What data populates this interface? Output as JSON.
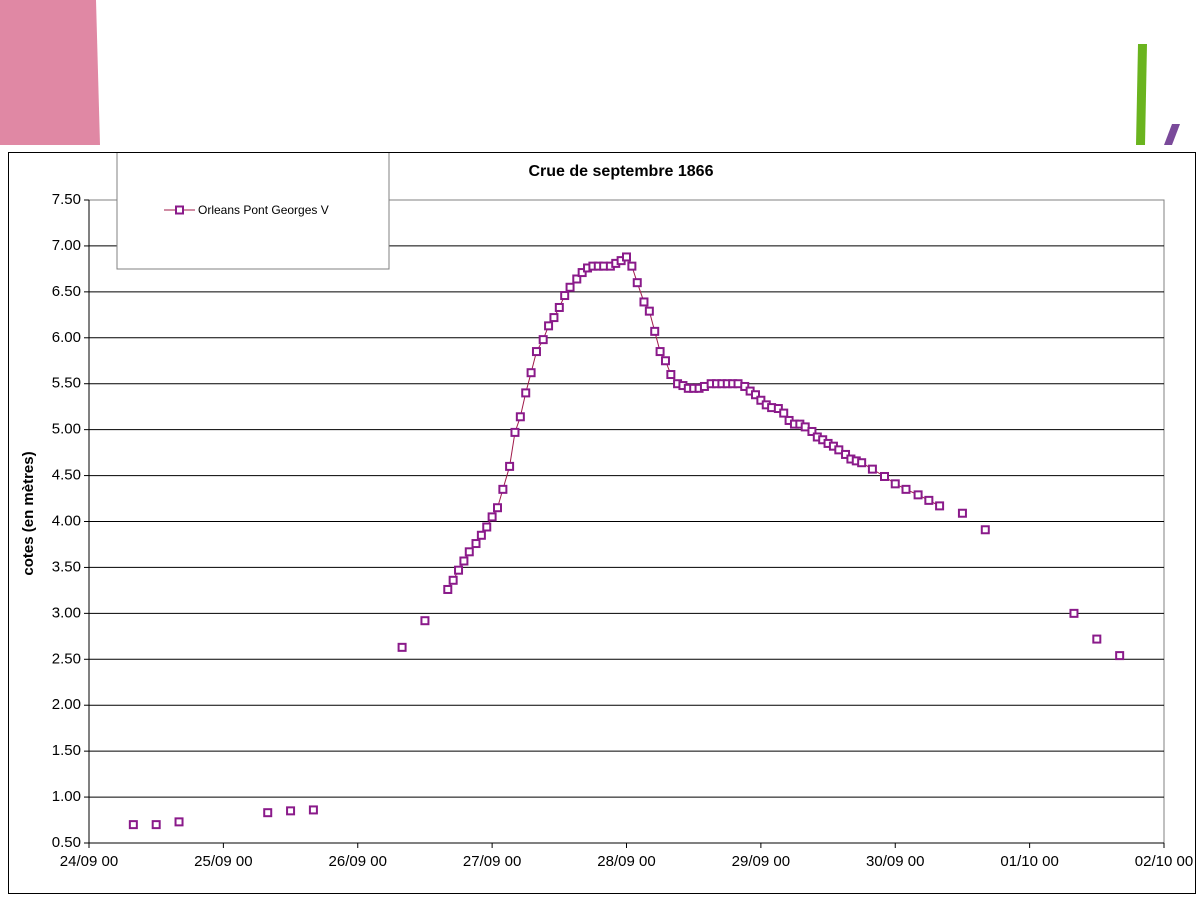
{
  "colors": {
    "series": "#8a1a8a",
    "line": "#a01a4a",
    "deco_pink": "#e088a4",
    "deco_green": "#6ab41e",
    "deco_purple": "#7a4a9a",
    "plot_bg": "#ffffff",
    "plot_border": "#808080",
    "grid": "#000000"
  },
  "chart_data": {
    "type": "scatter",
    "title": "Crue de septembre 1866",
    "ylabel": "cotes (en mètres)",
    "xlabel": "",
    "ylim": [
      0.5,
      7.5
    ],
    "xlim": [
      "24/09 00",
      "02/10 00"
    ],
    "x_unit": "days after 24/09 00:00",
    "y_ticks": [
      "7.50",
      "7.00",
      "6.50",
      "6.00",
      "5.50",
      "5.00",
      "4.50",
      "4.00",
      "3.50",
      "3.00",
      "2.50",
      "2.00",
      "1.50",
      "1.00",
      "0.50"
    ],
    "x_ticks": [
      "24/09 00",
      "25/09 00",
      "26/09 00",
      "27/09 00",
      "28/09 00",
      "29/09 00",
      "30/09 00",
      "01/10 00",
      "02/10 00"
    ],
    "grid": "horizontal",
    "legend": "top-left",
    "series": [
      {
        "name": "Orleans Pont Georges V",
        "marker": "open-square",
        "points": [
          [
            0.33,
            0.7
          ],
          [
            0.5,
            0.7
          ],
          [
            0.67,
            0.73
          ],
          [
            1.33,
            0.83
          ],
          [
            1.5,
            0.85
          ],
          [
            1.67,
            0.86
          ],
          [
            2.33,
            2.63
          ],
          [
            2.5,
            2.92
          ],
          [
            2.67,
            3.26
          ],
          [
            2.71,
            3.36
          ],
          [
            2.75,
            3.47
          ],
          [
            2.79,
            3.57
          ],
          [
            2.83,
            3.67
          ],
          [
            2.88,
            3.76
          ],
          [
            2.92,
            3.85
          ],
          [
            2.96,
            3.94
          ],
          [
            3.0,
            4.05
          ],
          [
            3.04,
            4.15
          ],
          [
            3.08,
            4.35
          ],
          [
            3.13,
            4.6
          ],
          [
            3.17,
            4.97
          ],
          [
            3.21,
            5.14
          ],
          [
            3.25,
            5.4
          ],
          [
            3.29,
            5.62
          ],
          [
            3.33,
            5.85
          ],
          [
            3.38,
            5.98
          ],
          [
            3.42,
            6.13
          ],
          [
            3.46,
            6.22
          ],
          [
            3.5,
            6.33
          ],
          [
            3.54,
            6.46
          ],
          [
            3.58,
            6.55
          ],
          [
            3.63,
            6.64
          ],
          [
            3.67,
            6.71
          ],
          [
            3.71,
            6.76
          ],
          [
            3.75,
            6.78
          ],
          [
            3.79,
            6.78
          ],
          [
            3.83,
            6.78
          ],
          [
            3.88,
            6.78
          ],
          [
            3.92,
            6.81
          ],
          [
            3.96,
            6.84
          ],
          [
            4.0,
            6.88
          ],
          [
            4.04,
            6.78
          ],
          [
            4.08,
            6.6
          ],
          [
            4.13,
            6.39
          ],
          [
            4.17,
            6.29
          ],
          [
            4.21,
            6.07
          ],
          [
            4.25,
            5.85
          ],
          [
            4.29,
            5.75
          ],
          [
            4.33,
            5.6
          ],
          [
            4.38,
            5.5
          ],
          [
            4.42,
            5.48
          ],
          [
            4.46,
            5.45
          ],
          [
            4.5,
            5.45
          ],
          [
            4.54,
            5.45
          ],
          [
            4.58,
            5.47
          ],
          [
            4.63,
            5.5
          ],
          [
            4.67,
            5.5
          ],
          [
            4.71,
            5.5
          ],
          [
            4.75,
            5.5
          ],
          [
            4.79,
            5.5
          ],
          [
            4.83,
            5.5
          ],
          [
            4.88,
            5.47
          ],
          [
            4.92,
            5.42
          ],
          [
            4.96,
            5.38
          ],
          [
            5.0,
            5.32
          ],
          [
            5.04,
            5.27
          ],
          [
            5.08,
            5.24
          ],
          [
            5.13,
            5.23
          ],
          [
            5.17,
            5.18
          ],
          [
            5.21,
            5.1
          ],
          [
            5.25,
            5.06
          ],
          [
            5.29,
            5.06
          ],
          [
            5.33,
            5.03
          ],
          [
            5.38,
            4.98
          ],
          [
            5.42,
            4.92
          ],
          [
            5.46,
            4.89
          ],
          [
            5.5,
            4.85
          ],
          [
            5.54,
            4.82
          ],
          [
            5.58,
            4.78
          ],
          [
            5.63,
            4.73
          ],
          [
            5.67,
            4.68
          ],
          [
            5.71,
            4.66
          ],
          [
            5.75,
            4.64
          ],
          [
            5.83,
            4.57
          ],
          [
            5.92,
            4.49
          ],
          [
            6.0,
            4.41
          ],
          [
            6.08,
            4.35
          ],
          [
            6.17,
            4.29
          ],
          [
            6.25,
            4.23
          ],
          [
            6.33,
            4.17
          ],
          [
            6.5,
            4.09
          ],
          [
            6.67,
            3.91
          ],
          [
            7.33,
            3.0
          ],
          [
            7.5,
            2.72
          ],
          [
            7.67,
            2.54
          ]
        ]
      }
    ]
  }
}
